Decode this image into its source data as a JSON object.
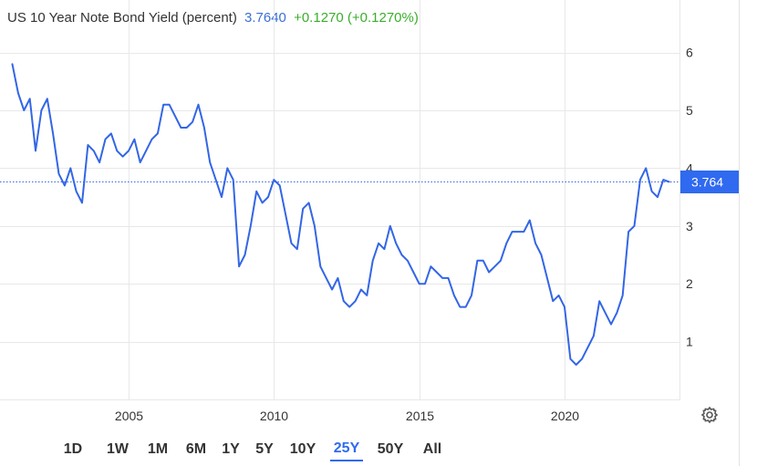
{
  "header": {
    "title": "US 10 Year Note Bond Yield (percent)",
    "last_value": "3.7640",
    "change": "+0.1270 (+0.1270%)"
  },
  "last_label": "3.764",
  "colors": {
    "line": "#3366e6",
    "accent": "#2f6af0",
    "positive": "#3aae2a",
    "grid": "#e8e8e8"
  },
  "settings_icon": "gear-icon",
  "range_buttons": [
    "1D",
    "1W",
    "1M",
    "6M",
    "1Y",
    "5Y",
    "10Y",
    "25Y",
    "50Y",
    "All"
  ],
  "active_range": "25Y",
  "chart_data": {
    "type": "line",
    "title": "US 10 Year Note Bond Yield (percent)",
    "series": [
      {
        "name": "US 10 Year Note Bond Yield",
        "x": [
          2001.0,
          2001.2,
          2001.4,
          2001.6,
          2001.8,
          2002.0,
          2002.2,
          2002.4,
          2002.6,
          2002.8,
          2003.0,
          2003.2,
          2003.4,
          2003.6,
          2003.8,
          2004.0,
          2004.2,
          2004.4,
          2004.6,
          2004.8,
          2005.0,
          2005.2,
          2005.4,
          2005.6,
          2005.8,
          2006.0,
          2006.2,
          2006.4,
          2006.6,
          2006.8,
          2007.0,
          2007.2,
          2007.4,
          2007.6,
          2007.8,
          2008.0,
          2008.2,
          2008.4,
          2008.6,
          2008.8,
          2009.0,
          2009.2,
          2009.4,
          2009.6,
          2009.8,
          2010.0,
          2010.2,
          2010.4,
          2010.6,
          2010.8,
          2011.0,
          2011.2,
          2011.4,
          2011.6,
          2011.8,
          2012.0,
          2012.2,
          2012.4,
          2012.6,
          2012.8,
          2013.0,
          2013.2,
          2013.4,
          2013.6,
          2013.8,
          2014.0,
          2014.2,
          2014.4,
          2014.6,
          2014.8,
          2015.0,
          2015.2,
          2015.4,
          2015.6,
          2015.8,
          2016.0,
          2016.2,
          2016.4,
          2016.6,
          2016.8,
          2017.0,
          2017.2,
          2017.4,
          2017.6,
          2017.8,
          2018.0,
          2018.2,
          2018.4,
          2018.6,
          2018.8,
          2019.0,
          2019.2,
          2019.4,
          2019.6,
          2019.8,
          2020.0,
          2020.2,
          2020.4,
          2020.6,
          2020.8,
          2021.0,
          2021.2,
          2021.4,
          2021.6,
          2021.8,
          2022.0,
          2022.2,
          2022.4,
          2022.6,
          2022.8,
          2023.0,
          2023.2,
          2023.4,
          2023.6
        ],
        "values": [
          5.8,
          5.3,
          5.0,
          5.2,
          4.3,
          5.0,
          5.2,
          4.6,
          3.9,
          3.7,
          4.0,
          3.6,
          3.4,
          4.4,
          4.3,
          4.1,
          4.5,
          4.6,
          4.3,
          4.2,
          4.3,
          4.5,
          4.1,
          4.3,
          4.5,
          4.6,
          5.1,
          5.1,
          4.9,
          4.7,
          4.7,
          4.8,
          5.1,
          4.7,
          4.1,
          3.8,
          3.5,
          4.0,
          3.8,
          2.3,
          2.5,
          3.0,
          3.6,
          3.4,
          3.5,
          3.8,
          3.7,
          3.2,
          2.7,
          2.6,
          3.3,
          3.4,
          3.0,
          2.3,
          2.1,
          1.9,
          2.1,
          1.7,
          1.6,
          1.7,
          1.9,
          1.8,
          2.4,
          2.7,
          2.6,
          3.0,
          2.7,
          2.5,
          2.4,
          2.2,
          2.0,
          2.0,
          2.3,
          2.2,
          2.1,
          2.1,
          1.8,
          1.6,
          1.6,
          1.8,
          2.4,
          2.4,
          2.2,
          2.3,
          2.4,
          2.7,
          2.9,
          2.9,
          2.9,
          3.1,
          2.7,
          2.5,
          2.1,
          1.7,
          1.8,
          1.6,
          0.7,
          0.6,
          0.7,
          0.9,
          1.1,
          1.7,
          1.5,
          1.3,
          1.5,
          1.8,
          2.9,
          3.0,
          3.8,
          4.0,
          3.6,
          3.5,
          3.8,
          3.764
        ]
      }
    ],
    "ylim": [
      0,
      6.5
    ],
    "xlim": [
      2001.0,
      2023.8
    ],
    "y_ticks": [
      "1",
      "2",
      "3",
      "4",
      "5",
      "6"
    ],
    "x_ticks": [
      "2005",
      "2010",
      "2015",
      "2020"
    ],
    "grid": true,
    "y_axis_position": "right"
  }
}
